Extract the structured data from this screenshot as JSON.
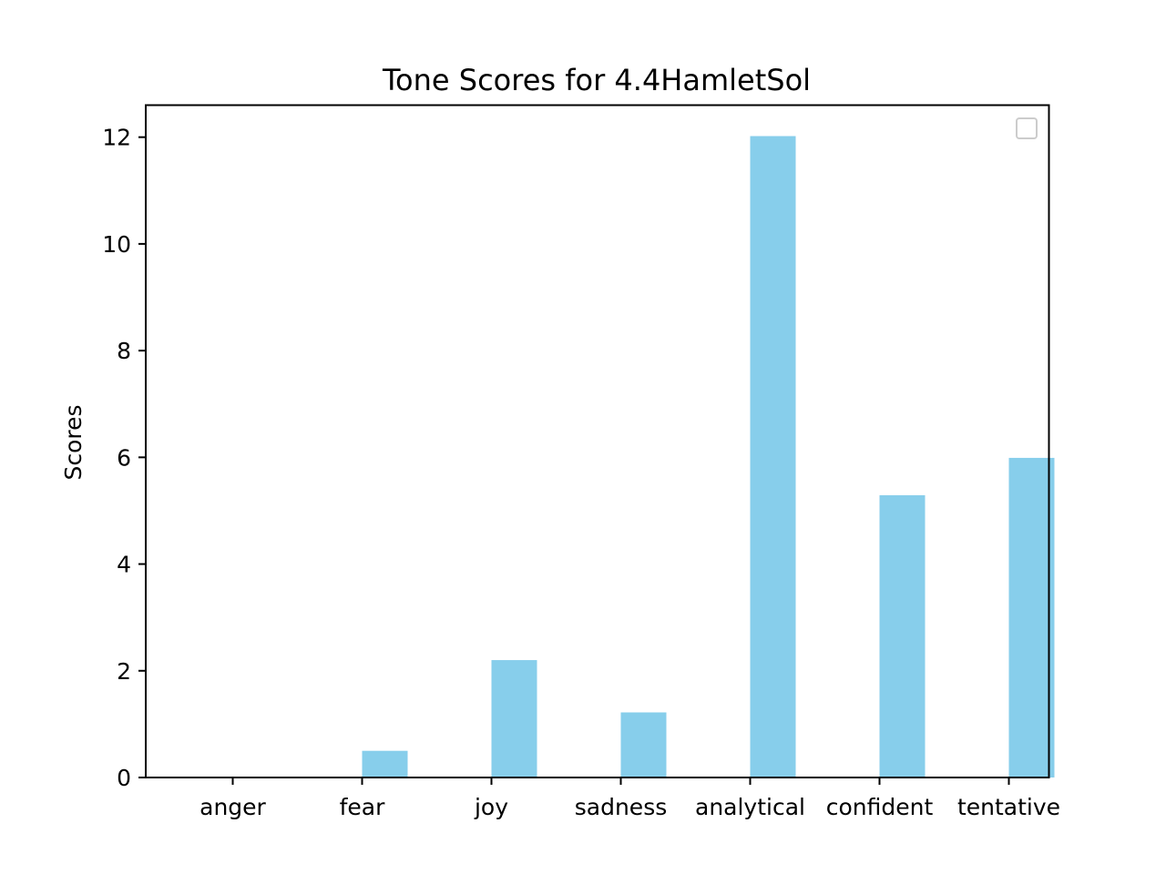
{
  "chart_data": {
    "type": "bar",
    "title": "Tone Scores for 4.4HamletSol",
    "xlabel": "",
    "ylabel": "Scores",
    "categories": [
      "anger",
      "fear",
      "joy",
      "sadness",
      "analytical",
      "confident",
      "tentative"
    ],
    "values": [
      0,
      0.5,
      2.2,
      1.22,
      12.02,
      5.29,
      5.99
    ],
    "ylim": [
      0,
      12.6
    ],
    "yticks": [
      0,
      2,
      4,
      6,
      8,
      10,
      12
    ],
    "ytick_labels": [
      "0",
      "2",
      "4",
      "6",
      "8",
      "10",
      "12"
    ],
    "grid": false,
    "legend": "top-right, empty",
    "bar_color": "#87ceeb"
  }
}
